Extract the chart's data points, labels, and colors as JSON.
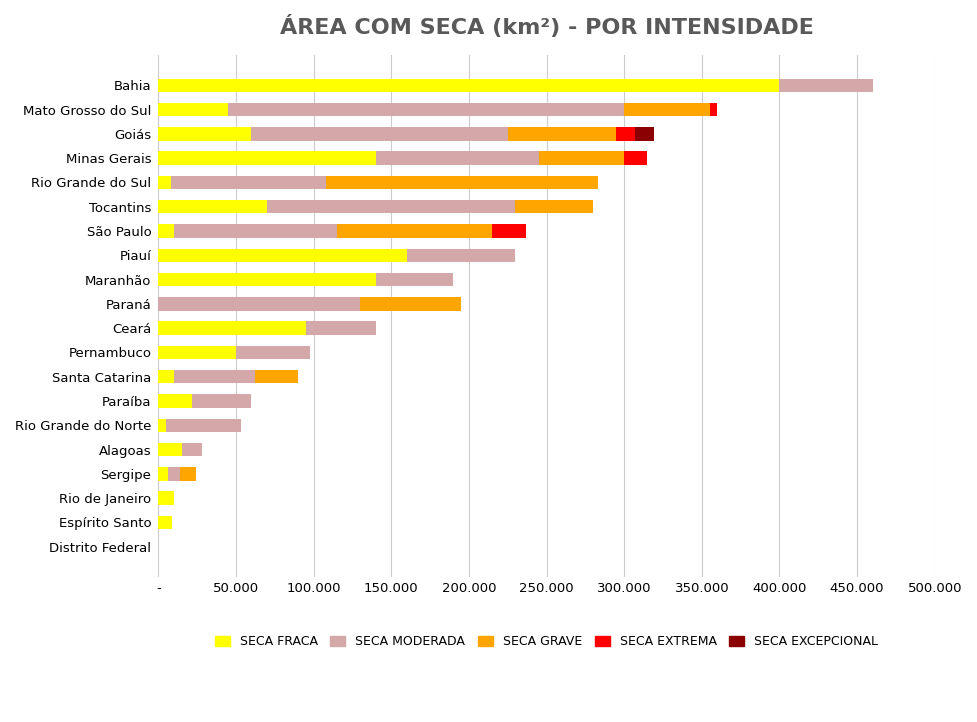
{
  "title": "ÁREA COM SECA (km²) - POR INTENSIDADE",
  "categories": [
    "Bahia",
    "Mato Grosso do Sul",
    "Goiás",
    "Minas Gerais",
    "Rio Grande do Sul",
    "Tocantins",
    "São Paulo",
    "Piauí",
    "Maranhão",
    "Paraná",
    "Ceará",
    "Pernambuco",
    "Santa Catarina",
    "Paraíba",
    "Rio Grande do Norte",
    "Alagoas",
    "Sergipe",
    "Rio de Janeiro",
    "Espírito Santo",
    "Distrito Federal"
  ],
  "series": {
    "SECA FRACA": [
      400000,
      45000,
      60000,
      140000,
      8000,
      70000,
      10000,
      160000,
      140000,
      0,
      95000,
      50000,
      10000,
      22000,
      5000,
      15000,
      6000,
      10000,
      9000,
      0
    ],
    "SECA MODERADA": [
      60000,
      255000,
      165000,
      105000,
      100000,
      160000,
      105000,
      70000,
      50000,
      130000,
      45000,
      48000,
      52000,
      38000,
      48000,
      13000,
      8000,
      0,
      0,
      0
    ],
    "SECA GRAVE": [
      0,
      55000,
      70000,
      55000,
      175000,
      50000,
      100000,
      0,
      0,
      65000,
      0,
      0,
      28000,
      0,
      0,
      0,
      10000,
      0,
      0,
      0
    ],
    "SECA EXTREMA": [
      0,
      5000,
      12000,
      15000,
      0,
      0,
      22000,
      0,
      0,
      0,
      0,
      0,
      0,
      0,
      0,
      0,
      0,
      0,
      0,
      0
    ],
    "SECA EXCEPCIONAL": [
      0,
      0,
      12000,
      0,
      0,
      0,
      0,
      0,
      0,
      0,
      0,
      0,
      0,
      0,
      0,
      0,
      0,
      0,
      0,
      0
    ]
  },
  "colors": {
    "SECA FRACA": "#FFFF00",
    "SECA MODERADA": "#D4A8A8",
    "SECA GRAVE": "#FFA500",
    "SECA EXTREMA": "#FF0000",
    "SECA EXCEPCIONAL": "#8B0000"
  },
  "xlim": [
    0,
    500000
  ],
  "xtick_step": 50000,
  "background_color": "#FFFFFF",
  "grid_color": "#CCCCCC",
  "title_color": "#595959",
  "bar_height": 0.55
}
